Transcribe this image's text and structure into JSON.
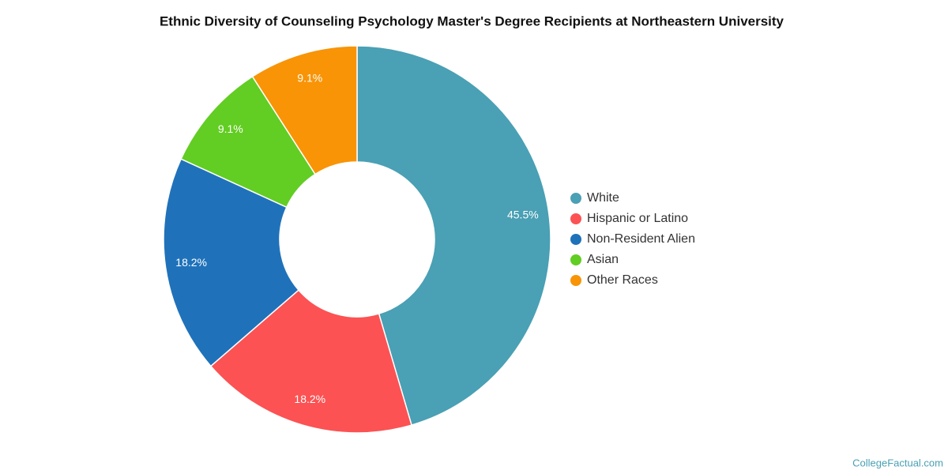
{
  "chart_data": {
    "type": "donut",
    "title": "Ethnic Diversity of Counseling Psychology Master's Degree Recipients at Northeastern University",
    "categories": [
      "White",
      "Hispanic or Latino",
      "Non-Resident Alien",
      "Asian",
      "Other Races"
    ],
    "values": [
      45.5,
      18.2,
      18.2,
      9.1,
      9.1
    ],
    "value_labels": [
      "45.5%",
      "18.2%",
      "18.2%",
      "9.1%",
      "9.1%"
    ],
    "colors": [
      "#4aa0b4",
      "#fc5253",
      "#1f72ba",
      "#62cd23",
      "#f89406"
    ],
    "legend": "right",
    "watermark": "CollegeFactual.com"
  }
}
